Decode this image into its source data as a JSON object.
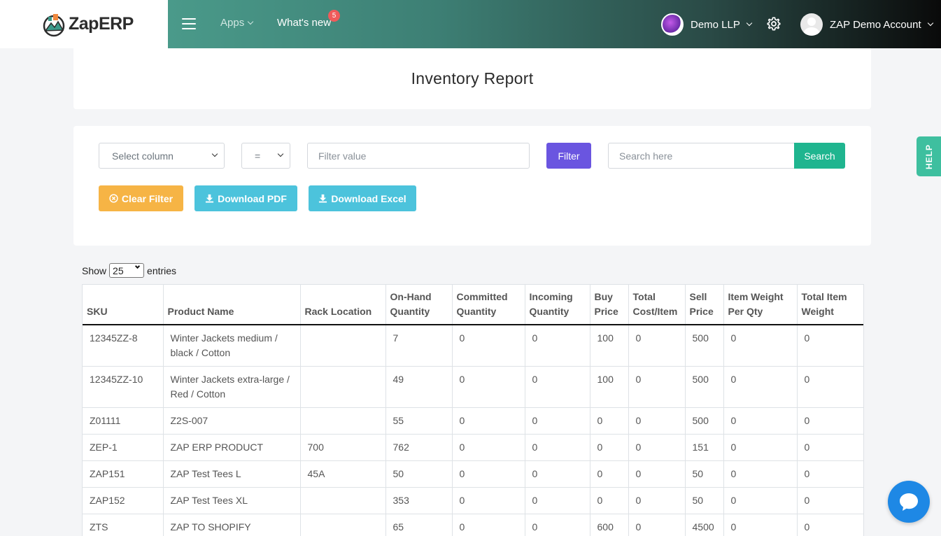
{
  "header": {
    "brand": "ZapERP",
    "nav_apps": "Apps",
    "nav_whats_new": "What's new",
    "whats_new_count": "5",
    "org_name": "Demo LLP",
    "account_name": "ZAP Demo Account"
  },
  "page_title": "Inventory Report",
  "filters": {
    "column_select": "Select column",
    "operator_select": "=",
    "filter_placeholder": "Filter value",
    "filter_button": "Filter",
    "search_placeholder": "Search here",
    "search_button": "Search",
    "clear_button": "Clear Filter",
    "pdf_button": "Download PDF",
    "excel_button": "Download Excel"
  },
  "entries": {
    "show": "Show",
    "value": "25",
    "entries": "entries"
  },
  "table": {
    "headers": [
      "SKU",
      "Product Name",
      "Rack Location",
      "On-Hand Quantity",
      "Committed Quantity",
      "Incoming Quantity",
      "Buy Price",
      "Total Cost/Item",
      "Sell Price",
      "Item Weight Per Qty",
      "Total Item Weight"
    ],
    "rows": [
      [
        "12345ZZ-8",
        "Winter Jackets medium / black / Cotton",
        "",
        "7",
        "0",
        "0",
        "100",
        "0",
        "500",
        "0",
        "0"
      ],
      [
        "12345ZZ-10",
        "Winter Jackets extra-large / Red / Cotton",
        "",
        "49",
        "0",
        "0",
        "100",
        "0",
        "500",
        "0",
        "0"
      ],
      [
        "Z01111",
        "Z2S-007",
        "",
        "55",
        "0",
        "0",
        "0",
        "0",
        "500",
        "0",
        "0"
      ],
      [
        "ZEP-1",
        "ZAP ERP PRODUCT",
        "700",
        "762",
        "0",
        "0",
        "0",
        "0",
        "151",
        "0",
        "0"
      ],
      [
        "ZAP151",
        "ZAP Test Tees L",
        "45A",
        "50",
        "0",
        "0",
        "0",
        "0",
        "50",
        "0",
        "0"
      ],
      [
        "ZAP152",
        "ZAP Test Tees XL",
        "",
        "353",
        "0",
        "0",
        "0",
        "0",
        "50",
        "0",
        "0"
      ],
      [
        "ZTS",
        "ZAP TO SHOPIFY",
        "",
        "65",
        "0",
        "0",
        "600",
        "0",
        "4500",
        "0",
        "0"
      ]
    ]
  },
  "help_tab": "HELP",
  "colors": {
    "filter": "#6a55e0",
    "search": "#1fb58f",
    "clear": "#f6b445",
    "download": "#4cc3dc",
    "help": "#3ebf9f",
    "chat": "#1e88e5"
  }
}
